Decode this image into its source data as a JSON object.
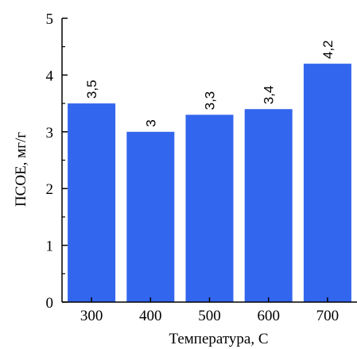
{
  "chart_data": {
    "type": "bar",
    "categories": [
      "300",
      "400",
      "500",
      "600",
      "700"
    ],
    "values": [
      3.5,
      3.0,
      3.3,
      3.4,
      4.2
    ],
    "data_labels": [
      "3,5",
      "3",
      "3,3",
      "3,4",
      "4,2"
    ],
    "xlabel": "Температура, С",
    "ylabel": "ПСОЕ, мг/г",
    "ylim": [
      0,
      5
    ],
    "yticks": [
      "0",
      "1",
      "2",
      "3",
      "4",
      "5"
    ],
    "grid": false,
    "bar_color": "#3366ee"
  }
}
